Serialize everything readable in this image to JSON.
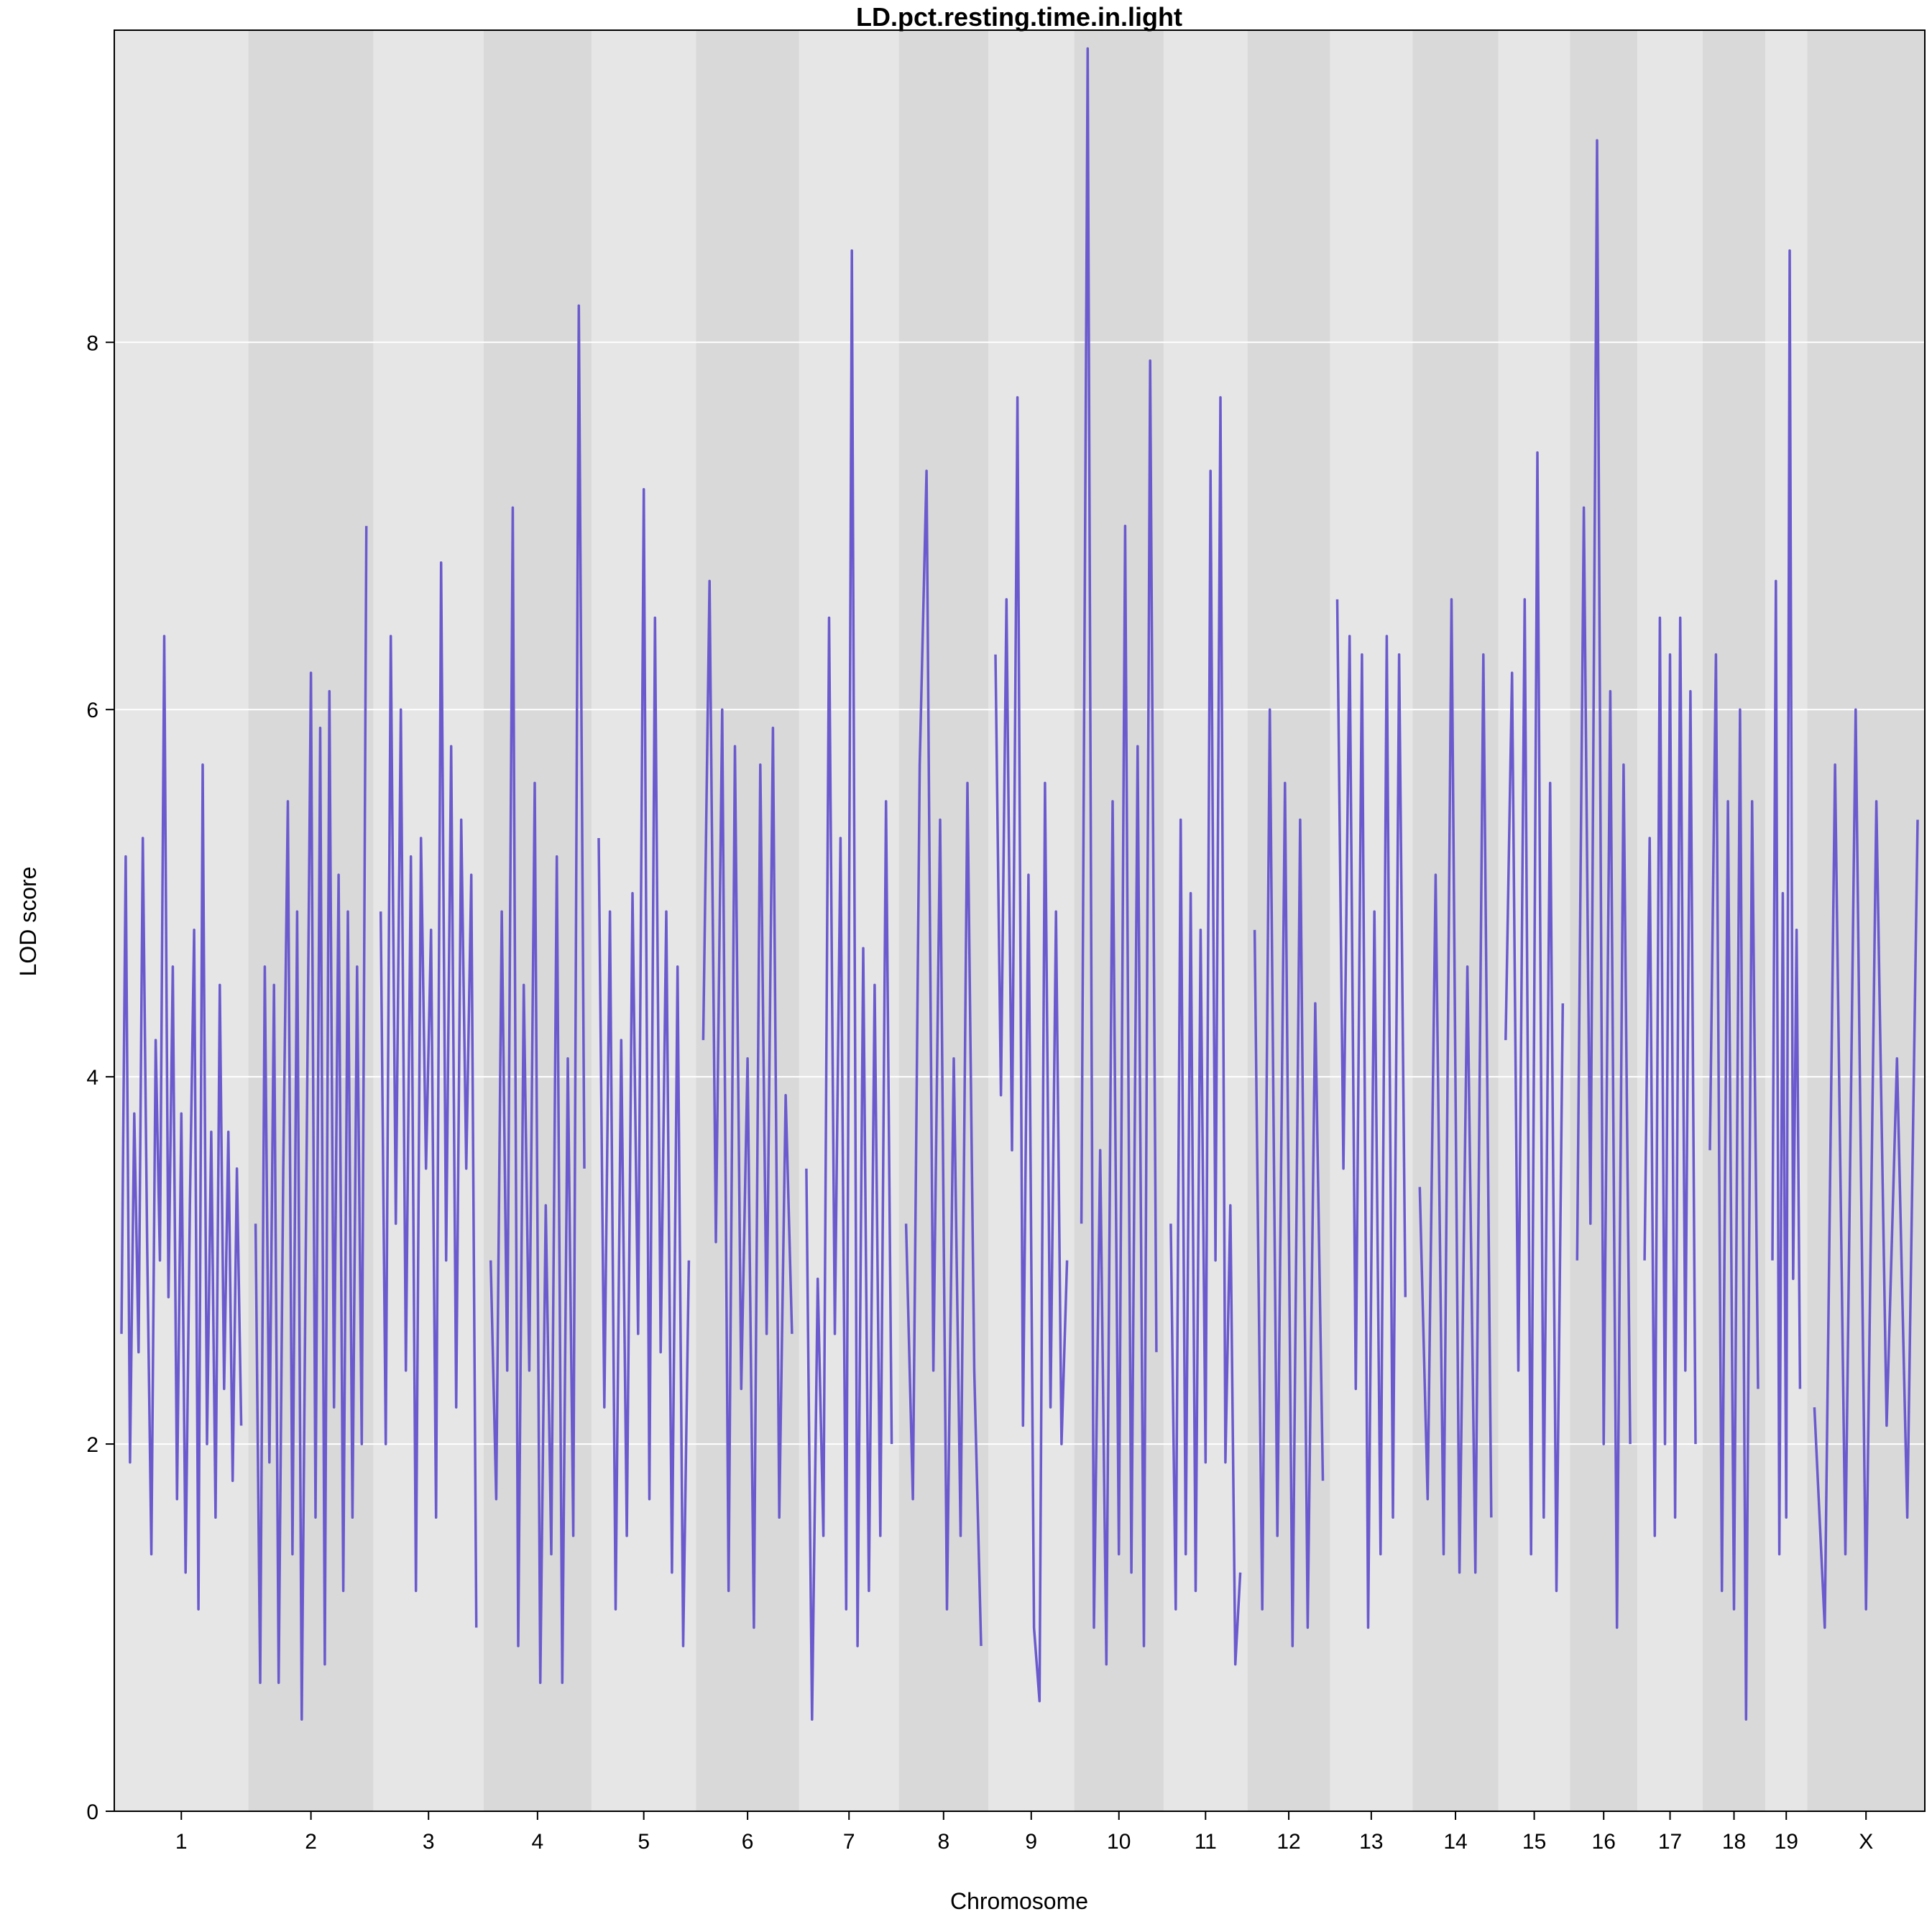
{
  "chart_data": {
    "type": "line",
    "title": "LD.pct.resting.time.in.light",
    "xlabel": "Chromosome",
    "ylabel": "LOD score",
    "ylim": [
      0,
      9.7
    ],
    "yticks": [
      0,
      2,
      4,
      6,
      8
    ],
    "grid": true,
    "background_bands": true,
    "colors": {
      "line": "#6A5ACD",
      "band_light": "#E6E6E6",
      "band_dark": "#D9D9D9",
      "gridline": "#FFFFFF",
      "axis": "#000000"
    },
    "series": [
      {
        "chromosomes": [
          {
            "label": "1",
            "values": [
              2.6,
              5.2,
              1.9,
              3.8,
              2.5,
              5.3,
              3.1,
              1.4,
              4.2,
              3.0,
              6.4,
              2.8,
              4.6,
              1.7,
              3.8,
              1.3,
              3.3,
              4.8,
              1.1,
              5.7,
              2.0,
              3.7,
              1.6,
              4.5,
              2.3,
              3.7,
              1.8,
              3.5,
              2.1
            ]
          },
          {
            "label": "2",
            "values": [
              3.2,
              0.7,
              4.6,
              1.9,
              4.5,
              0.7,
              3.5,
              5.5,
              1.4,
              4.9,
              0.5,
              3.4,
              6.2,
              1.6,
              5.9,
              0.8,
              6.1,
              2.2,
              5.1,
              1.2,
              4.9,
              1.6,
              4.6,
              2.0,
              7.0
            ]
          },
          {
            "label": "3",
            "values": [
              4.9,
              2.0,
              6.4,
              3.2,
              6.0,
              2.4,
              5.2,
              1.2,
              5.3,
              3.5,
              4.8,
              1.6,
              6.8,
              3.0,
              5.8,
              2.2,
              5.4,
              3.5,
              5.1,
              1.0
            ]
          },
          {
            "label": "4",
            "values": [
              3.0,
              1.7,
              4.9,
              2.4,
              7.1,
              0.9,
              4.5,
              2.4,
              5.6,
              0.7,
              3.3,
              1.4,
              5.2,
              0.7,
              4.1,
              1.5,
              8.2,
              3.5
            ]
          },
          {
            "label": "5",
            "values": [
              5.3,
              2.2,
              4.9,
              1.1,
              4.2,
              1.5,
              5.0,
              2.6,
              7.2,
              1.7,
              6.5,
              2.5,
              4.9,
              1.3,
              4.6,
              0.9,
              3.0
            ]
          },
          {
            "label": "6",
            "values": [
              4.2,
              6.7,
              3.1,
              6.0,
              1.2,
              5.8,
              2.3,
              4.1,
              1.0,
              5.7,
              2.6,
              5.9,
              1.6,
              3.9,
              2.6
            ]
          },
          {
            "label": "7",
            "values": [
              3.5,
              0.5,
              2.9,
              1.5,
              6.5,
              2.6,
              5.3,
              1.1,
              8.5,
              0.9,
              4.7,
              1.2,
              4.5,
              1.5,
              5.5,
              2.0
            ]
          },
          {
            "label": "8",
            "values": [
              3.2,
              1.7,
              5.7,
              7.3,
              2.4,
              5.4,
              1.1,
              4.1,
              1.5,
              5.6,
              2.4,
              0.9
            ]
          },
          {
            "label": "9",
            "values": [
              6.3,
              3.9,
              6.6,
              3.6,
              7.7,
              2.1,
              5.1,
              1.0,
              0.6,
              5.6,
              2.2,
              4.9,
              2.0,
              3.0
            ]
          },
          {
            "label": "10",
            "values": [
              3.2,
              9.6,
              1.0,
              3.6,
              0.8,
              5.5,
              1.4,
              7.0,
              1.3,
              5.8,
              0.9,
              7.9,
              2.5
            ]
          },
          {
            "label": "11",
            "values": [
              3.2,
              1.1,
              5.4,
              1.4,
              5.0,
              1.2,
              4.8,
              1.9,
              7.3,
              3.0,
              7.7,
              1.9,
              3.3,
              0.8,
              1.3
            ]
          },
          {
            "label": "12",
            "values": [
              4.8,
              1.1,
              6.0,
              1.5,
              5.6,
              0.9,
              5.4,
              1.0,
              4.4,
              1.8
            ]
          },
          {
            "label": "13",
            "values": [
              6.6,
              3.5,
              6.4,
              2.3,
              6.3,
              1.0,
              4.9,
              1.4,
              6.4,
              1.6,
              6.3,
              2.8
            ]
          },
          {
            "label": "14",
            "values": [
              3.4,
              1.7,
              5.1,
              1.4,
              6.6,
              1.3,
              4.6,
              1.3,
              6.3,
              1.6
            ]
          },
          {
            "label": "15",
            "values": [
              4.2,
              6.2,
              2.4,
              6.6,
              1.4,
              7.4,
              1.6,
              5.6,
              1.2,
              4.4
            ]
          },
          {
            "label": "16",
            "values": [
              3.0,
              7.1,
              3.2,
              9.1,
              2.0,
              6.1,
              1.0,
              5.7,
              2.0
            ]
          },
          {
            "label": "17",
            "values": [
              3.0,
              5.3,
              1.5,
              6.5,
              2.0,
              6.3,
              1.6,
              6.5,
              2.4,
              6.1,
              2.0
            ]
          },
          {
            "label": "18",
            "values": [
              3.6,
              6.3,
              1.2,
              5.5,
              1.1,
              6.0,
              0.5,
              5.5,
              2.3
            ]
          },
          {
            "label": "19",
            "values": [
              3.0,
              6.7,
              1.4,
              5.0,
              1.6,
              8.5,
              2.9,
              4.8,
              2.3
            ]
          },
          {
            "label": "X",
            "values": [
              2.2,
              1.0,
              5.7,
              1.4,
              6.0,
              1.1,
              5.5,
              2.1,
              4.1,
              1.6,
              5.4
            ]
          }
        ]
      }
    ]
  }
}
